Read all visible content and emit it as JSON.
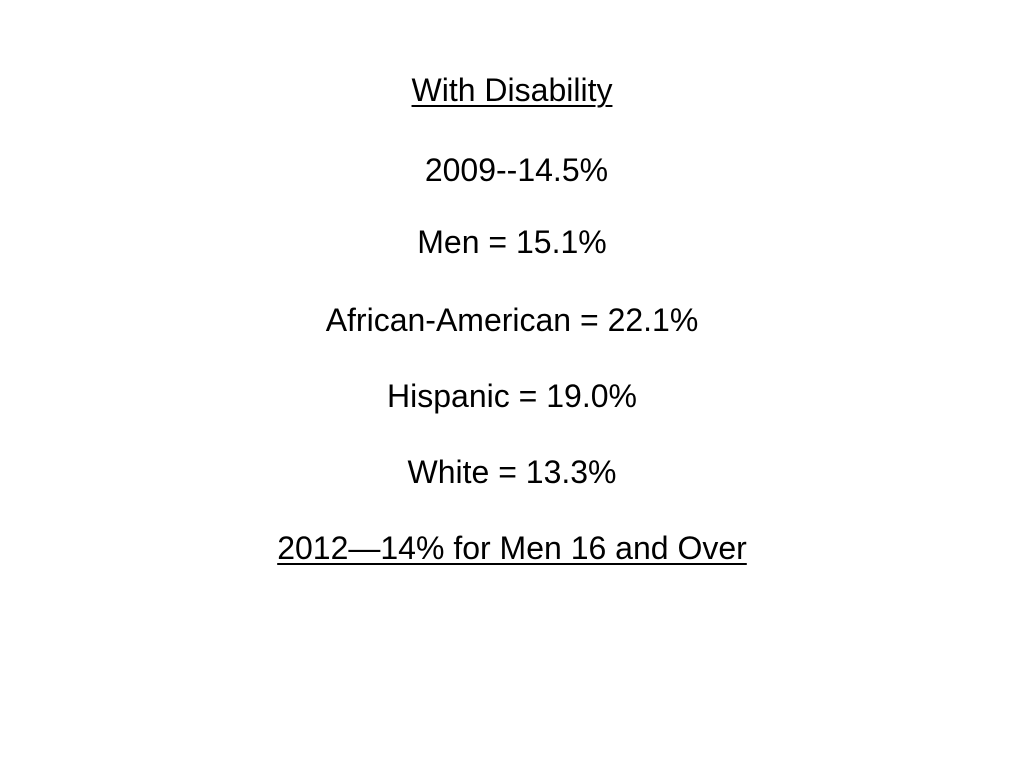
{
  "slide": {
    "lines": [
      {
        "text": "With Disability",
        "underline": true
      },
      {
        "text": " 2009--14.5%",
        "underline": false
      },
      {
        "text": "Men = 15.1%",
        "underline": false
      },
      {
        "text": "African-American = 22.1%",
        "underline": false
      },
      {
        "text": "Hispanic = 19.0%",
        "underline": false
      },
      {
        "text": "White = 13.3%",
        "underline": false
      },
      {
        "text": "2012—14% for Men 16 and Over",
        "underline": true
      }
    ]
  }
}
